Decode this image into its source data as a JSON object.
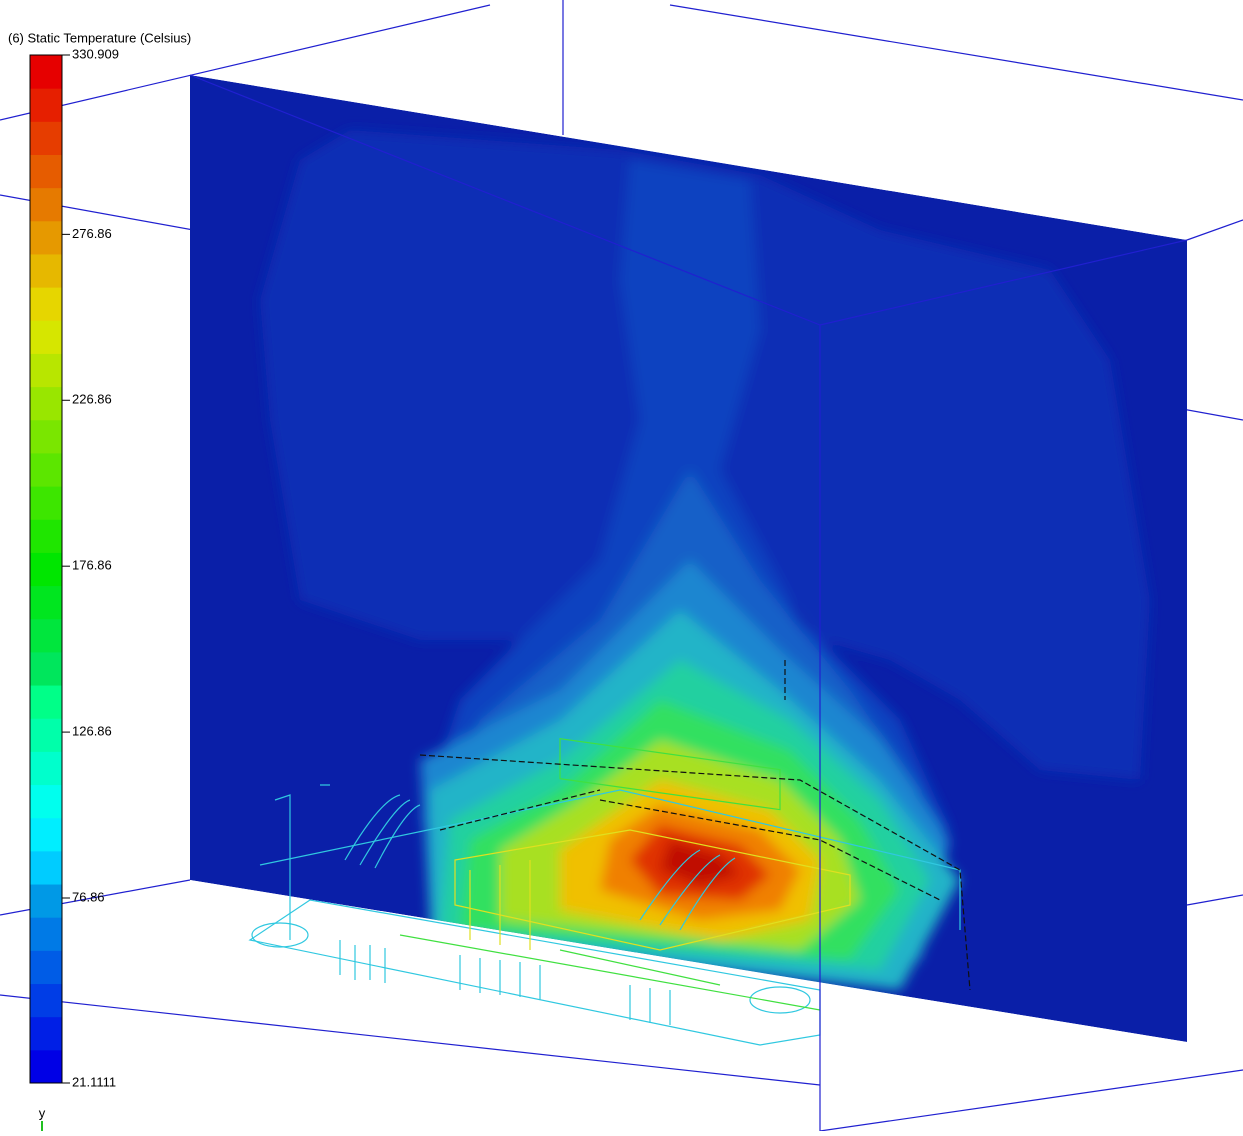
{
  "legend": {
    "title": "(6) Static Temperature (Celsius)",
    "ticks": [
      "330.909",
      "276.86",
      "226.86",
      "176.86",
      "126.86",
      "76.86",
      "21.1111"
    ]
  },
  "axis_label": "y"
}
